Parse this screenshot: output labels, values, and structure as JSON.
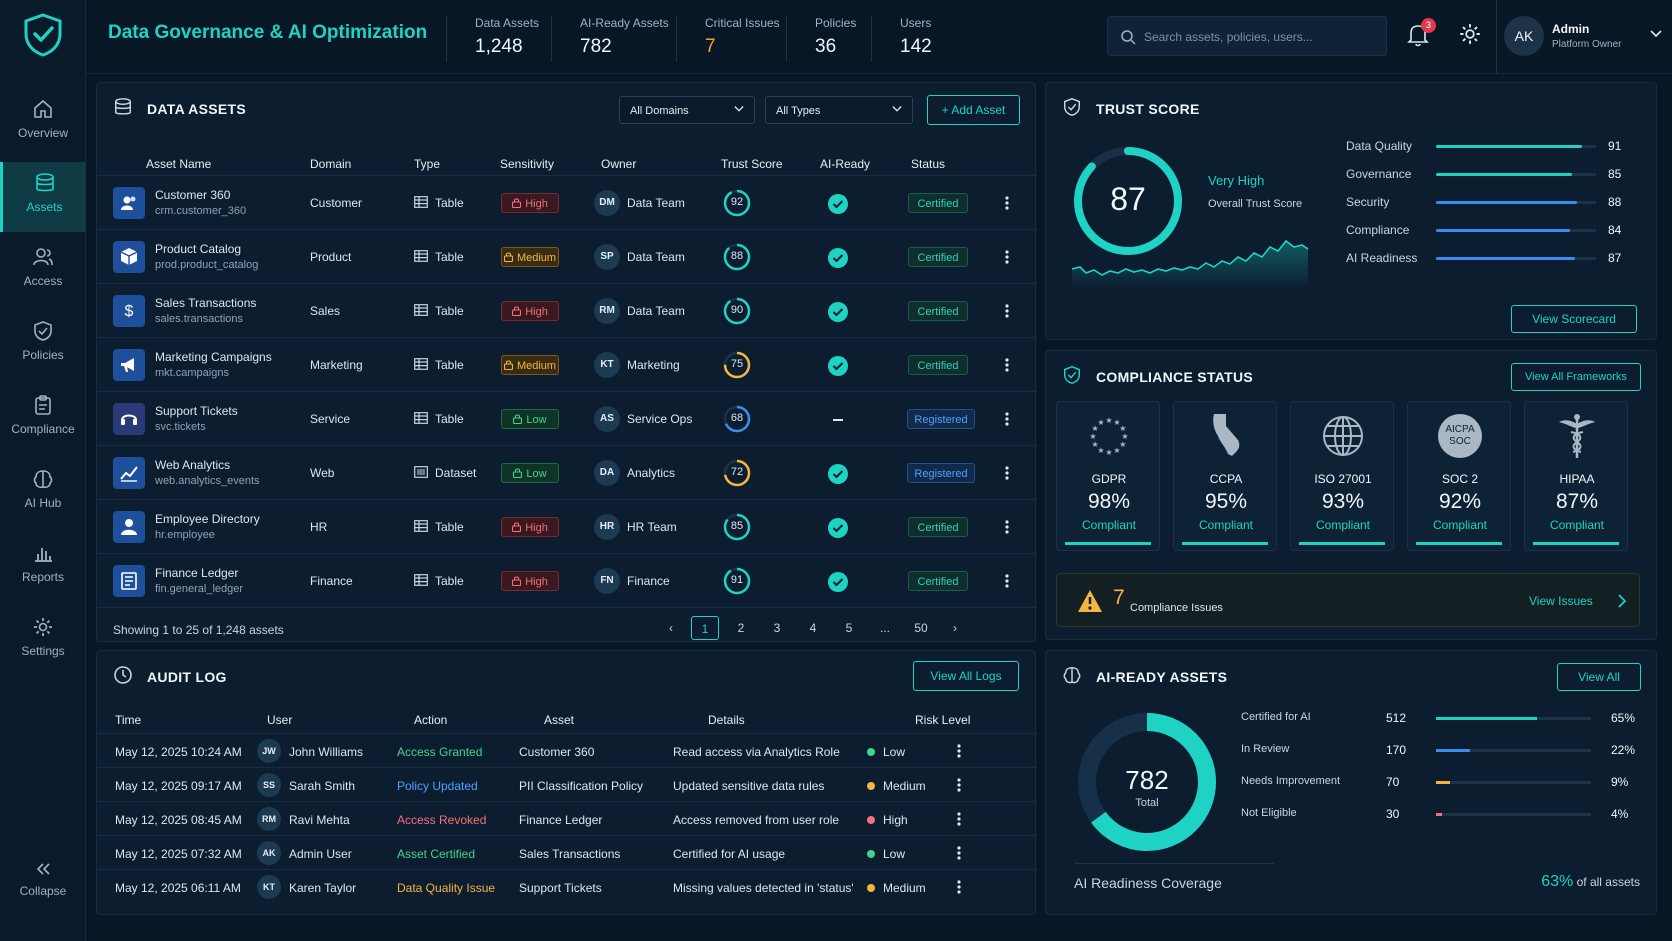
{
  "app": {
    "title": "Data Governance & AI Optimization"
  },
  "header": {
    "stats": [
      {
        "label": "Data Assets",
        "value": "1,248",
        "color": "#f2f7fb"
      },
      {
        "label": "AI-Ready Assets",
        "value": "782",
        "color": "#f2f7fb"
      },
      {
        "label": "Critical Issues",
        "value": "7",
        "color": "#f5a623"
      },
      {
        "label": "Policies",
        "value": "36",
        "color": "#f2f7fb"
      },
      {
        "label": "Users",
        "value": "142",
        "color": "#f2f7fb"
      }
    ],
    "search_placeholder": "Search assets, policies, users...",
    "notification_count": "3",
    "user": {
      "initials": "AK",
      "name": "Admin",
      "role": "Platform Owner"
    }
  },
  "sidebar": {
    "items": [
      {
        "label": "Overview",
        "icon": "home-icon"
      },
      {
        "label": "Assets",
        "icon": "database-icon",
        "active": true
      },
      {
        "label": "Access",
        "icon": "users-icon"
      },
      {
        "label": "Policies",
        "icon": "shield-check-icon"
      },
      {
        "label": "Compliance",
        "icon": "clipboard-icon"
      },
      {
        "label": "AI Hub",
        "icon": "brain-icon"
      },
      {
        "label": "Reports",
        "icon": "bar-chart-icon"
      },
      {
        "label": "Settings",
        "icon": "gear-icon"
      }
    ],
    "collapse_label": "Collapse"
  },
  "assets": {
    "title": "DATA ASSETS",
    "domain_filter": "All Domains",
    "type_filter": "All Types",
    "add_label": "Add Asset",
    "columns": [
      "Asset Name",
      "Domain",
      "Type",
      "Sensitivity",
      "Owner",
      "Trust Score",
      "AI-Ready",
      "Status"
    ],
    "rows": [
      {
        "name": "Customer 360",
        "path": "crm.customer_360",
        "domain": "Customer",
        "type": "Table",
        "sensitivity": "High",
        "owner_initials": "DM",
        "owner": "Data Team",
        "trust": 92,
        "ai_ready": true,
        "status": "Certified",
        "icon": "users-icon",
        "icon_color": "#1e4f9a"
      },
      {
        "name": "Product Catalog",
        "path": "prod.product_catalog",
        "domain": "Product",
        "type": "Table",
        "sensitivity": "Medium",
        "owner_initials": "SP",
        "owner": "Data Team",
        "trust": 88,
        "ai_ready": true,
        "status": "Certified",
        "icon": "cube-icon",
        "icon_color": "#1e4f9a"
      },
      {
        "name": "Sales Transactions",
        "path": "sales.transactions",
        "domain": "Sales",
        "type": "Table",
        "sensitivity": "High",
        "owner_initials": "RM",
        "owner": "Data Team",
        "trust": 90,
        "ai_ready": true,
        "status": "Certified",
        "icon": "dollar-icon",
        "icon_color": "#1e4f9a"
      },
      {
        "name": "Marketing Campaigns",
        "path": "mkt.campaigns",
        "domain": "Marketing",
        "type": "Table",
        "sensitivity": "Medium",
        "owner_initials": "KT",
        "owner": "Marketing",
        "trust": 75,
        "ai_ready": true,
        "status": "Certified",
        "icon": "megaphone-icon",
        "icon_color": "#1e4f9a"
      },
      {
        "name": "Support Tickets",
        "path": "svc.tickets",
        "domain": "Service",
        "type": "Table",
        "sensitivity": "Low",
        "owner_initials": "AS",
        "owner": "Service Ops",
        "trust": 68,
        "ai_ready": false,
        "status": "Registered",
        "icon": "headset-icon",
        "icon_color": "#2a3a78"
      },
      {
        "name": "Web Analytics",
        "path": "web.analytics_events",
        "domain": "Web",
        "type": "Dataset",
        "sensitivity": "Low",
        "owner_initials": "DA",
        "owner": "Analytics",
        "trust": 72,
        "ai_ready": true,
        "status": "Registered",
        "icon": "trend-icon",
        "icon_color": "#1e4f9a"
      },
      {
        "name": "Employee Directory",
        "path": "hr.employee",
        "domain": "HR",
        "type": "Table",
        "sensitivity": "High",
        "owner_initials": "HR",
        "owner": "HR Team",
        "trust": 85,
        "ai_ready": true,
        "status": "Certified",
        "icon": "person-icon",
        "icon_color": "#1e4f9a"
      },
      {
        "name": "Finance Ledger",
        "path": "fin.general_ledger",
        "domain": "Finance",
        "type": "Table",
        "sensitivity": "High",
        "owner_initials": "FN",
        "owner": "Finance",
        "trust": 91,
        "ai_ready": true,
        "status": "Certified",
        "icon": "ledger-icon",
        "icon_color": "#1e4f9a"
      }
    ],
    "showing": "Showing 1 to 25 of 1,248 assets",
    "pages": [
      "1",
      "2",
      "3",
      "4",
      "5",
      "...",
      "50"
    ]
  },
  "audit": {
    "title": "AUDIT LOG",
    "view_label": "View All Logs",
    "columns": [
      "Time",
      "User",
      "Action",
      "Asset",
      "Details",
      "Risk Level"
    ],
    "rows": [
      {
        "time": "May 12, 2025 10:24 AM",
        "initials": "JW",
        "user": "John Williams",
        "action": "Access Granted",
        "action_color": "#3fd68f",
        "asset": "Customer 360",
        "details": "Read access via Analytics Role",
        "risk": "Low",
        "risk_color": "#3fd68f"
      },
      {
        "time": "May 12, 2025 09:17 AM",
        "initials": "SS",
        "user": "Sarah Smith",
        "action": "Policy Updated",
        "action_color": "#4fa2ff",
        "asset": "PII Classification Policy",
        "details": "Updated sensitive data rules",
        "risk": "Medium",
        "risk_color": "#f5b640"
      },
      {
        "time": "May 12, 2025 08:45 AM",
        "initials": "RM",
        "user": "Ravi Mehta",
        "action": "Access Revoked",
        "action_color": "#f4707c",
        "asset": "Finance Ledger",
        "details": "Access removed from user role",
        "risk": "High",
        "risk_color": "#f4707c"
      },
      {
        "time": "May 12, 2025 07:32 AM",
        "initials": "AK",
        "user": "Admin User",
        "action": "Asset Certified",
        "action_color": "#3fd68f",
        "asset": "Sales Transactions",
        "details": "Certified for AI usage",
        "risk": "Low",
        "risk_color": "#3fd68f"
      },
      {
        "time": "May 12, 2025 06:11 AM",
        "initials": "KT",
        "user": "Karen Taylor",
        "action": "Data Quality Issue",
        "action_color": "#f5b640",
        "asset": "Support Tickets",
        "details": "Missing values detected in 'status'",
        "risk": "Medium",
        "risk_color": "#f5b640"
      }
    ]
  },
  "trust": {
    "title": "TRUST SCORE",
    "score": "87",
    "score_value": 87,
    "rating": "Very High",
    "caption": "Overall Trust Score",
    "metrics": [
      {
        "label": "Data Quality",
        "value": 91,
        "color": "#1fd3c4"
      },
      {
        "label": "Governance",
        "value": 85,
        "color": "#1fd3c4"
      },
      {
        "label": "Security",
        "value": 88,
        "color": "#3a8cf0"
      },
      {
        "label": "Compliance",
        "value": 84,
        "color": "#3a8cf0"
      },
      {
        "label": "AI Readiness",
        "value": 87,
        "color": "#3a8cf0"
      }
    ],
    "view_label": "View Scorecard"
  },
  "compliance": {
    "title": "COMPLIANCE STATUS",
    "view_label": "View All Frameworks",
    "frameworks": [
      {
        "name": "GDPR",
        "pct": "98%",
        "status": "Compliant",
        "icon": "eu-stars-icon"
      },
      {
        "name": "CCPA",
        "pct": "95%",
        "status": "Compliant",
        "icon": "california-icon"
      },
      {
        "name": "ISO 27001",
        "pct": "93%",
        "status": "Compliant",
        "icon": "globe-icon"
      },
      {
        "name": "SOC 2",
        "pct": "92%",
        "status": "Compliant",
        "icon": "aicpa-soc-icon",
        "seal_text_1": "AICPA",
        "seal_text_2": "SOC"
      },
      {
        "name": "HIPAA",
        "pct": "87%",
        "status": "Compliant",
        "icon": "caduceus-icon"
      }
    ],
    "issues_count": "7",
    "issues_label": "Compliance Issues",
    "issues_view": "View Issues"
  },
  "ai_ready": {
    "title": "AI-READY ASSETS",
    "view_label": "View All",
    "total": "782",
    "total_label": "Total",
    "rows": [
      {
        "label": "Certified for AI",
        "count": "512",
        "pct": "65%",
        "fraction": 0.65,
        "color": "#1fd3c4"
      },
      {
        "label": "In Review",
        "count": "170",
        "pct": "22%",
        "fraction": 0.22,
        "color": "#3a8cf0"
      },
      {
        "label": "Needs Improvement",
        "count": "70",
        "pct": "9%",
        "fraction": 0.09,
        "color": "#f5b640"
      },
      {
        "label": "Not Eligible",
        "count": "30",
        "pct": "4%",
        "fraction": 0.04,
        "color": "#f4707c"
      }
    ],
    "coverage_label": "AI Readiness Coverage",
    "coverage_pct": "63%",
    "coverage_suffix": "of all assets"
  }
}
